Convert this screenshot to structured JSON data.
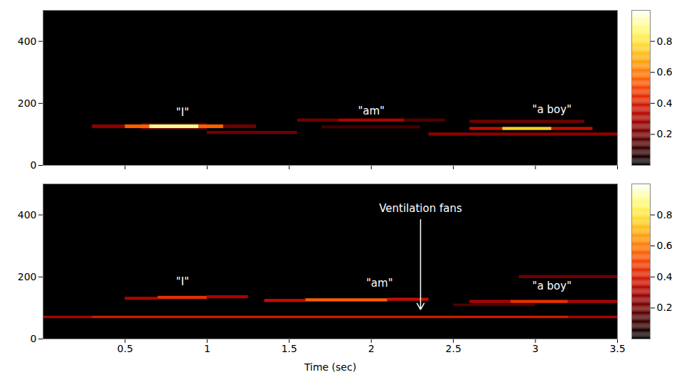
{
  "chart_data": [
    {
      "type": "heatmap",
      "color": "hot",
      "xlim": [
        0,
        3.5
      ],
      "xticks": [
        0.5,
        1,
        1.5,
        2,
        2.5,
        3,
        3.5
      ],
      "ylim": [
        0,
        500
      ],
      "yticks": [
        0,
        200,
        400
      ],
      "tick_labels": "y",
      "colorbar": {
        "range": [
          0,
          1
        ],
        "ticks": [
          0.2,
          0.4,
          0.6,
          0.8
        ]
      },
      "cells": [
        {
          "x1": 0.6,
          "x2": 1.0,
          "y1": 114,
          "y2": 136,
          "value": 0.15
        },
        {
          "x1": 0.3,
          "x2": 0.5,
          "y1": 119,
          "y2": 131,
          "value": 0.25
        },
        {
          "x1": 0.5,
          "x2": 0.65,
          "y1": 119,
          "y2": 131,
          "value": 0.55
        },
        {
          "x1": 0.65,
          "x2": 0.95,
          "y1": 119,
          "y2": 131,
          "value": 0.9
        },
        {
          "x1": 0.95,
          "x2": 1.1,
          "y1": 119,
          "y2": 131,
          "value": 0.55
        },
        {
          "x1": 1.1,
          "x2": 1.3,
          "y1": 119,
          "y2": 131,
          "value": 0.2
        },
        {
          "x1": 1.0,
          "x2": 1.55,
          "y1": 100,
          "y2": 110,
          "value": 0.2
        },
        {
          "x1": 1.55,
          "x2": 1.8,
          "y1": 140,
          "y2": 150,
          "value": 0.2
        },
        {
          "x1": 1.8,
          "x2": 2.2,
          "y1": 140,
          "y2": 150,
          "value": 0.3
        },
        {
          "x1": 2.2,
          "x2": 2.45,
          "y1": 140,
          "y2": 150,
          "value": 0.15
        },
        {
          "x1": 1.7,
          "x2": 2.3,
          "y1": 118,
          "y2": 128,
          "value": 0.12
        },
        {
          "x1": 2.35,
          "x2": 3.5,
          "y1": 95,
          "y2": 105,
          "value": 0.25
        },
        {
          "x1": 2.6,
          "x2": 3.3,
          "y1": 136,
          "y2": 146,
          "value": 0.2
        },
        {
          "x1": 2.6,
          "x2": 2.8,
          "y1": 113,
          "y2": 123,
          "value": 0.35
        },
        {
          "x1": 2.8,
          "x2": 3.1,
          "y1": 113,
          "y2": 123,
          "value": 0.75
        },
        {
          "x1": 3.1,
          "x2": 3.35,
          "y1": 113,
          "y2": 123,
          "value": 0.35
        }
      ],
      "annotations": [
        {
          "text": "\"I\"",
          "x": 0.85,
          "y": 170
        },
        {
          "text": "\"am\"",
          "x": 2.0,
          "y": 175
        },
        {
          "text": "\"a boy\"",
          "x": 3.1,
          "y": 180
        }
      ]
    },
    {
      "type": "heatmap",
      "color": "hot",
      "xlim": [
        0,
        3.5
      ],
      "xticks": [
        0.5,
        1,
        1.5,
        2,
        2.5,
        3,
        3.5
      ],
      "ylim": [
        0,
        500
      ],
      "yticks": [
        0,
        200,
        400
      ],
      "x_label": "Time (sec)",
      "colorbar": {
        "range": [
          0,
          1
        ],
        "ticks": [
          0.2,
          0.4,
          0.6,
          0.8
        ]
      },
      "cells": [
        {
          "x1": 0.0,
          "x2": 3.5,
          "y1": 66,
          "y2": 74,
          "value": 0.3
        },
        {
          "x1": 0.3,
          "x2": 3.2,
          "y1": 67,
          "y2": 73,
          "value": 0.4
        },
        {
          "x1": 0.5,
          "x2": 0.7,
          "y1": 125,
          "y2": 135,
          "value": 0.3
        },
        {
          "x1": 0.7,
          "x2": 1.0,
          "y1": 128,
          "y2": 138,
          "value": 0.45
        },
        {
          "x1": 1.0,
          "x2": 1.25,
          "y1": 130,
          "y2": 140,
          "value": 0.3
        },
        {
          "x1": 1.35,
          "x2": 1.6,
          "y1": 118,
          "y2": 128,
          "value": 0.35
        },
        {
          "x1": 1.6,
          "x2": 2.1,
          "y1": 120,
          "y2": 130,
          "value": 0.55
        },
        {
          "x1": 2.1,
          "x2": 2.35,
          "y1": 122,
          "y2": 132,
          "value": 0.35
        },
        {
          "x1": 2.5,
          "x2": 3.0,
          "y1": 105,
          "y2": 113,
          "value": 0.15
        },
        {
          "x1": 2.6,
          "x2": 2.85,
          "y1": 115,
          "y2": 125,
          "value": 0.3
        },
        {
          "x1": 2.85,
          "x2": 3.2,
          "y1": 115,
          "y2": 125,
          "value": 0.45
        },
        {
          "x1": 3.2,
          "x2": 3.5,
          "y1": 115,
          "y2": 125,
          "value": 0.3
        },
        {
          "x1": 2.9,
          "x2": 3.5,
          "y1": 195,
          "y2": 205,
          "value": 0.2
        }
      ],
      "annotations": [
        {
          "text": "\"I\"",
          "x": 0.85,
          "y": 185
        },
        {
          "text": "\"am\"",
          "x": 2.05,
          "y": 180
        },
        {
          "text": "\"a boy\"",
          "x": 3.1,
          "y": 170
        },
        {
          "text": "Ventilation fans",
          "x": 2.3,
          "y": 420,
          "arrow": {
            "y1": 385,
            "y2": 95
          }
        }
      ]
    }
  ]
}
